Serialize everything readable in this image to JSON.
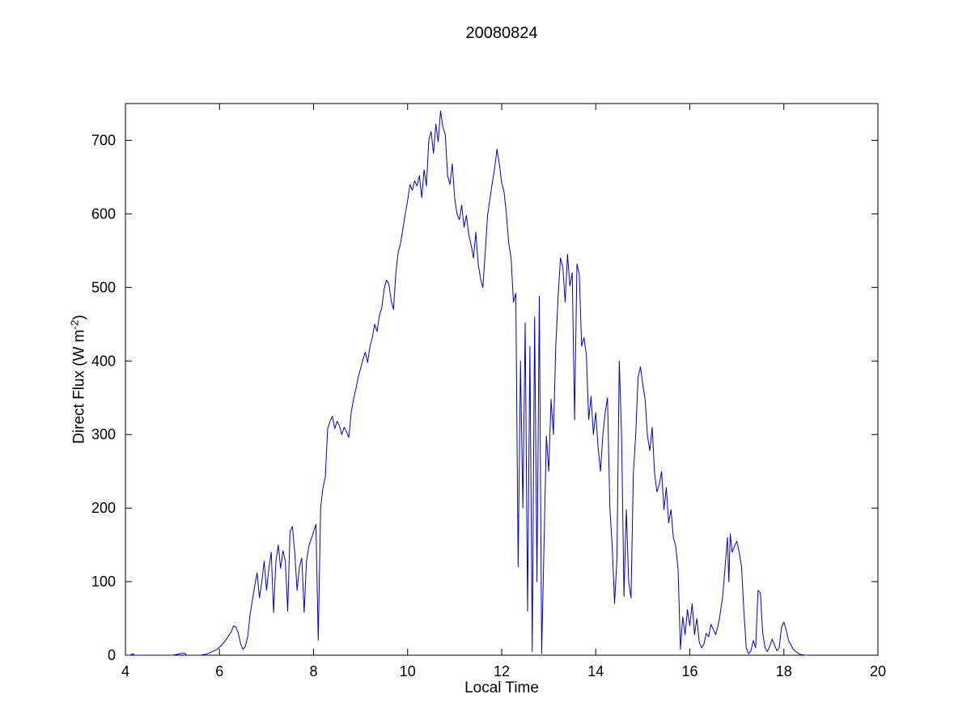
{
  "chart_data": {
    "type": "line",
    "title": "20080824",
    "xlabel": "Local Time",
    "ylabel": "Direct Flux (W m^-2)",
    "ylabel_parts": {
      "prefix": "Direct Flux (W m",
      "superscript": "-2",
      "suffix": ")"
    },
    "xlim": [
      4,
      20
    ],
    "ylim": [
      0,
      750
    ],
    "x_ticks": [
      4,
      6,
      8,
      10,
      12,
      14,
      16,
      18,
      20
    ],
    "y_ticks": [
      0,
      100,
      200,
      300,
      400,
      500,
      600,
      700
    ],
    "grid": false,
    "legend": null,
    "line_color": "#0000CC",
    "axis_color": "#000000",
    "background_color": "#ffffff",
    "series": [
      {
        "name": "direct_flux",
        "points": [
          [
            4.0,
            0
          ],
          [
            4.1,
            0
          ],
          [
            4.15,
            2
          ],
          [
            4.2,
            0
          ],
          [
            4.5,
            0
          ],
          [
            5.0,
            0
          ],
          [
            5.25,
            3
          ],
          [
            5.3,
            0
          ],
          [
            5.6,
            0
          ],
          [
            5.75,
            2
          ],
          [
            5.85,
            5
          ],
          [
            5.95,
            8
          ],
          [
            6.05,
            14
          ],
          [
            6.15,
            22
          ],
          [
            6.25,
            32
          ],
          [
            6.3,
            40
          ],
          [
            6.35,
            38
          ],
          [
            6.4,
            30
          ],
          [
            6.45,
            15
          ],
          [
            6.5,
            8
          ],
          [
            6.55,
            12
          ],
          [
            6.6,
            25
          ],
          [
            6.65,
            55
          ],
          [
            6.7,
            75
          ],
          [
            6.75,
            95
          ],
          [
            6.8,
            112
          ],
          [
            6.85,
            78
          ],
          [
            6.9,
            100
          ],
          [
            6.95,
            128
          ],
          [
            7.0,
            88
          ],
          [
            7.05,
            118
          ],
          [
            7.1,
            140
          ],
          [
            7.15,
            58
          ],
          [
            7.2,
            128
          ],
          [
            7.25,
            150
          ],
          [
            7.3,
            118
          ],
          [
            7.35,
            142
          ],
          [
            7.4,
            128
          ],
          [
            7.45,
            60
          ],
          [
            7.5,
            168
          ],
          [
            7.55,
            175
          ],
          [
            7.6,
            140
          ],
          [
            7.65,
            88
          ],
          [
            7.7,
            120
          ],
          [
            7.75,
            132
          ],
          [
            7.8,
            58
          ],
          [
            7.85,
            128
          ],
          [
            7.9,
            148
          ],
          [
            7.95,
            158
          ],
          [
            8.0,
            168
          ],
          [
            8.05,
            178
          ],
          [
            8.1,
            20
          ],
          [
            8.15,
            200
          ],
          [
            8.2,
            228
          ],
          [
            8.25,
            242
          ],
          [
            8.3,
            308
          ],
          [
            8.35,
            318
          ],
          [
            8.4,
            325
          ],
          [
            8.45,
            308
          ],
          [
            8.5,
            318
          ],
          [
            8.55,
            312
          ],
          [
            8.6,
            300
          ],
          [
            8.65,
            310
          ],
          [
            8.7,
            304
          ],
          [
            8.75,
            296
          ],
          [
            8.8,
            330
          ],
          [
            8.85,
            348
          ],
          [
            8.9,
            362
          ],
          [
            8.95,
            378
          ],
          [
            9.0,
            390
          ],
          [
            9.05,
            402
          ],
          [
            9.1,
            412
          ],
          [
            9.15,
            398
          ],
          [
            9.2,
            420
          ],
          [
            9.25,
            432
          ],
          [
            9.3,
            450
          ],
          [
            9.35,
            440
          ],
          [
            9.4,
            462
          ],
          [
            9.45,
            472
          ],
          [
            9.5,
            498
          ],
          [
            9.55,
            510
          ],
          [
            9.6,
            505
          ],
          [
            9.65,
            482
          ],
          [
            9.7,
            470
          ],
          [
            9.75,
            520
          ],
          [
            9.8,
            548
          ],
          [
            9.85,
            560
          ],
          [
            9.9,
            580
          ],
          [
            9.95,
            600
          ],
          [
            10.0,
            618
          ],
          [
            10.05,
            640
          ],
          [
            10.1,
            632
          ],
          [
            10.15,
            645
          ],
          [
            10.2,
            638
          ],
          [
            10.25,
            652
          ],
          [
            10.3,
            622
          ],
          [
            10.35,
            660
          ],
          [
            10.4,
            638
          ],
          [
            10.45,
            700
          ],
          [
            10.5,
            712
          ],
          [
            10.55,
            682
          ],
          [
            10.6,
            722
          ],
          [
            10.65,
            698
          ],
          [
            10.7,
            740
          ],
          [
            10.75,
            718
          ],
          [
            10.8,
            708
          ],
          [
            10.85,
            652
          ],
          [
            10.9,
            640
          ],
          [
            10.95,
            668
          ],
          [
            11.0,
            622
          ],
          [
            11.05,
            600
          ],
          [
            11.1,
            592
          ],
          [
            11.15,
            612
          ],
          [
            11.2,
            582
          ],
          [
            11.25,
            598
          ],
          [
            11.3,
            572
          ],
          [
            11.35,
            558
          ],
          [
            11.4,
            540
          ],
          [
            11.45,
            575
          ],
          [
            11.5,
            532
          ],
          [
            11.55,
            512
          ],
          [
            11.6,
            500
          ],
          [
            11.65,
            548
          ],
          [
            11.7,
            598
          ],
          [
            11.75,
            620
          ],
          [
            11.8,
            642
          ],
          [
            11.85,
            662
          ],
          [
            11.9,
            688
          ],
          [
            11.95,
            668
          ],
          [
            12.0,
            642
          ],
          [
            12.05,
            630
          ],
          [
            12.1,
            600
          ],
          [
            12.15,
            560
          ],
          [
            12.2,
            540
          ],
          [
            12.25,
            480
          ],
          [
            12.3,
            492
          ],
          [
            12.35,
            120
          ],
          [
            12.4,
            400
          ],
          [
            12.45,
            200
          ],
          [
            12.5,
            452
          ],
          [
            12.55,
            60
          ],
          [
            12.6,
            420
          ],
          [
            12.65,
            5
          ],
          [
            12.7,
            460
          ],
          [
            12.75,
            100
          ],
          [
            12.8,
            488
          ],
          [
            12.85,
            2
          ],
          [
            12.9,
            150
          ],
          [
            12.95,
            298
          ],
          [
            13.0,
            250
          ],
          [
            13.05,
            348
          ],
          [
            13.1,
            300
          ],
          [
            13.15,
            420
          ],
          [
            13.2,
            488
          ],
          [
            13.25,
            540
          ],
          [
            13.3,
            528
          ],
          [
            13.35,
            480
          ],
          [
            13.4,
            545
          ],
          [
            13.45,
            502
          ],
          [
            13.5,
            520
          ],
          [
            13.55,
            320
          ],
          [
            13.6,
            532
          ],
          [
            13.65,
            518
          ],
          [
            13.7,
            420
          ],
          [
            13.75,
            432
          ],
          [
            13.8,
            408
          ],
          [
            13.85,
            320
          ],
          [
            13.9,
            352
          ],
          [
            13.95,
            300
          ],
          [
            14.0,
            330
          ],
          [
            14.05,
            282
          ],
          [
            14.1,
            250
          ],
          [
            14.15,
            298
          ],
          [
            14.2,
            330
          ],
          [
            14.25,
            350
          ],
          [
            14.3,
            200
          ],
          [
            14.35,
            148
          ],
          [
            14.4,
            70
          ],
          [
            14.45,
            130
          ],
          [
            14.5,
            400
          ],
          [
            14.55,
            298
          ],
          [
            14.6,
            80
          ],
          [
            14.65,
            198
          ],
          [
            14.7,
            100
          ],
          [
            14.75,
            78
          ],
          [
            14.8,
            248
          ],
          [
            14.85,
            300
          ],
          [
            14.9,
            378
          ],
          [
            14.95,
            392
          ],
          [
            15.0,
            368
          ],
          [
            15.05,
            348
          ],
          [
            15.1,
            298
          ],
          [
            15.15,
            278
          ],
          [
            15.2,
            310
          ],
          [
            15.25,
            248
          ],
          [
            15.3,
            222
          ],
          [
            15.35,
            232
          ],
          [
            15.4,
            250
          ],
          [
            15.45,
            198
          ],
          [
            15.5,
            228
          ],
          [
            15.55,
            180
          ],
          [
            15.6,
            198
          ],
          [
            15.65,
            160
          ],
          [
            15.7,
            148
          ],
          [
            15.75,
            118
          ],
          [
            15.8,
            8
          ],
          [
            15.85,
            52
          ],
          [
            15.9,
            28
          ],
          [
            15.95,
            62
          ],
          [
            16.0,
            40
          ],
          [
            16.05,
            70
          ],
          [
            16.1,
            28
          ],
          [
            16.15,
            50
          ],
          [
            16.2,
            18
          ],
          [
            16.25,
            10
          ],
          [
            16.3,
            15
          ],
          [
            16.35,
            30
          ],
          [
            16.4,
            25
          ],
          [
            16.45,
            42
          ],
          [
            16.5,
            35
          ],
          [
            16.55,
            28
          ],
          [
            16.6,
            40
          ],
          [
            16.65,
            58
          ],
          [
            16.7,
            80
          ],
          [
            16.75,
            120
          ],
          [
            16.8,
            160
          ],
          [
            16.83,
            100
          ],
          [
            16.86,
            165
          ],
          [
            16.9,
            140
          ],
          [
            16.95,
            148
          ],
          [
            17.0,
            155
          ],
          [
            17.05,
            140
          ],
          [
            17.1,
            120
          ],
          [
            17.15,
            60
          ],
          [
            17.2,
            10
          ],
          [
            17.25,
            2
          ],
          [
            17.3,
            6
          ],
          [
            17.35,
            20
          ],
          [
            17.4,
            10
          ],
          [
            17.45,
            88
          ],
          [
            17.5,
            85
          ],
          [
            17.55,
            30
          ],
          [
            17.6,
            10
          ],
          [
            17.65,
            5
          ],
          [
            17.7,
            12
          ],
          [
            17.75,
            22
          ],
          [
            17.8,
            14
          ],
          [
            17.85,
            6
          ],
          [
            17.9,
            10
          ],
          [
            17.95,
            38
          ],
          [
            18.0,
            45
          ],
          [
            18.05,
            34
          ],
          [
            18.1,
            20
          ],
          [
            18.15,
            14
          ],
          [
            18.2,
            8
          ],
          [
            18.25,
            5
          ],
          [
            18.3,
            3
          ],
          [
            18.35,
            1
          ],
          [
            18.45,
            0
          ],
          [
            18.5,
            0
          ]
        ]
      }
    ]
  }
}
